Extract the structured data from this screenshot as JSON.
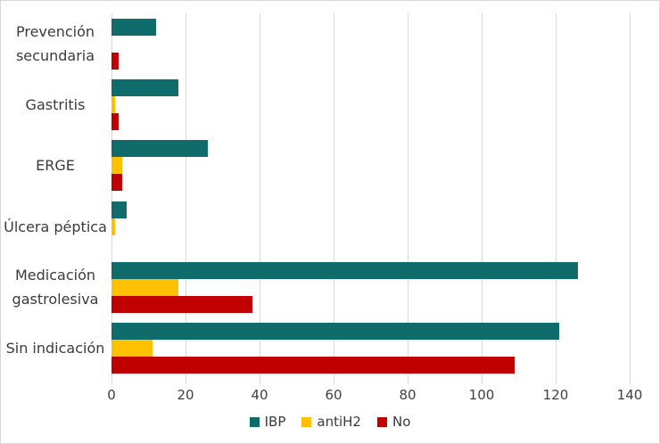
{
  "chart_data": {
    "type": "bar",
    "orientation": "horizontal",
    "categories": [
      "Prevención secundaria",
      "Gastritis",
      "ERGE",
      "Úlcera péptica",
      "Medicación gastrolesiva",
      "Sin indicación"
    ],
    "series": [
      {
        "name": "IBP",
        "color": "#0f6c6b",
        "values": [
          12,
          18,
          26,
          4,
          126,
          121
        ]
      },
      {
        "name": "antiH2",
        "color": "#ffc000",
        "values": [
          0,
          1,
          3,
          1,
          18,
          11
        ]
      },
      {
        "name": "No",
        "color": "#c00000",
        "values": [
          2,
          2,
          3,
          0,
          38,
          109
        ]
      }
    ],
    "xlim": [
      0,
      140
    ],
    "x_ticks": [
      0,
      20,
      40,
      60,
      80,
      100,
      120,
      140
    ],
    "grid": "vertical-gridlines-on",
    "legend_position": "bottom",
    "colors": {
      "gridline": "#d9d9d9",
      "text": "#3b3b3b",
      "background": "#ffffff",
      "figure_border": "#d6d6d6"
    }
  }
}
